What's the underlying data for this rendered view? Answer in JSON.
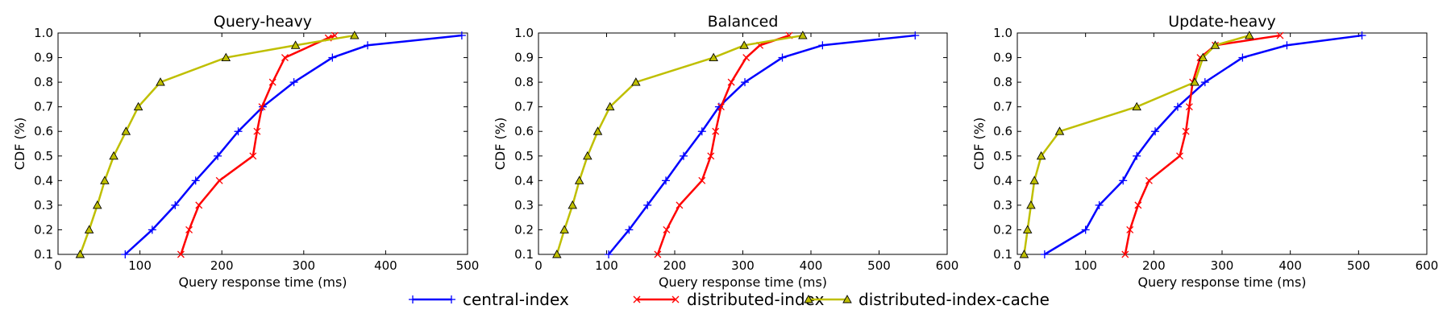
{
  "chart_data": [
    {
      "type": "line",
      "title": "Query-heavy",
      "xlabel": "Query response time (ms)",
      "ylabel": "CDF (%)",
      "xlim": [
        0,
        500
      ],
      "ylim": [
        0.1,
        1.0
      ],
      "xticks": [
        0,
        100,
        200,
        300,
        400,
        500
      ],
      "yticks": [
        0.1,
        0.2,
        0.3,
        0.4,
        0.5,
        0.6,
        0.7,
        0.8,
        0.9,
        1.0
      ],
      "grid": false,
      "series": [
        {
          "name": "central-index",
          "x": [
            82,
            115,
            143,
            168,
            195,
            220,
            250,
            288,
            335,
            378,
            493
          ],
          "y": [
            0.1,
            0.2,
            0.3,
            0.4,
            0.5,
            0.6,
            0.7,
            0.8,
            0.9,
            0.95,
            0.99
          ]
        },
        {
          "name": "distributed-index",
          "x": [
            150,
            160,
            172,
            197,
            238,
            243,
            249,
            262,
            277,
            330,
            338
          ],
          "y": [
            0.1,
            0.2,
            0.3,
            0.4,
            0.5,
            0.6,
            0.7,
            0.8,
            0.9,
            0.98,
            0.99
          ]
        },
        {
          "name": "distributed-index-cache",
          "x": [
            27,
            38,
            48,
            57,
            68,
            83,
            98,
            125,
            205,
            290,
            362
          ],
          "y": [
            0.1,
            0.2,
            0.3,
            0.4,
            0.5,
            0.6,
            0.7,
            0.8,
            0.9,
            0.95,
            0.99
          ]
        }
      ]
    },
    {
      "type": "line",
      "title": "Balanced",
      "xlabel": "Query response time (ms)",
      "ylabel": "CDF (%)",
      "xlim": [
        0,
        600
      ],
      "ylim": [
        0.1,
        1.0
      ],
      "xticks": [
        0,
        100,
        200,
        300,
        400,
        500,
        600
      ],
      "yticks": [
        0.1,
        0.2,
        0.3,
        0.4,
        0.5,
        0.6,
        0.7,
        0.8,
        0.9,
        1.0
      ],
      "grid": false,
      "series": [
        {
          "name": "central-index",
          "x": [
            103,
            133,
            160,
            187,
            213,
            240,
            265,
            303,
            358,
            417,
            553
          ],
          "y": [
            0.1,
            0.2,
            0.3,
            0.4,
            0.5,
            0.6,
            0.7,
            0.8,
            0.9,
            0.95,
            0.99
          ]
        },
        {
          "name": "distributed-index",
          "x": [
            175,
            188,
            207,
            240,
            253,
            260,
            268,
            283,
            305,
            325,
            368
          ],
          "y": [
            0.1,
            0.2,
            0.3,
            0.4,
            0.5,
            0.6,
            0.7,
            0.8,
            0.9,
            0.95,
            0.99
          ]
        },
        {
          "name": "distributed-index-cache",
          "x": [
            27,
            38,
            50,
            60,
            72,
            87,
            105,
            143,
            257,
            302,
            388
          ],
          "y": [
            0.1,
            0.2,
            0.3,
            0.4,
            0.5,
            0.6,
            0.7,
            0.8,
            0.9,
            0.95,
            0.99
          ]
        }
      ]
    },
    {
      "type": "line",
      "title": "Update-heavy",
      "xlabel": "Query response time (ms)",
      "ylabel": "CDF (%)",
      "xlim": [
        0,
        600
      ],
      "ylim": [
        0.1,
        1.0
      ],
      "xticks": [
        0,
        100,
        200,
        300,
        400,
        500,
        600
      ],
      "yticks": [
        0.1,
        0.2,
        0.3,
        0.4,
        0.5,
        0.6,
        0.7,
        0.8,
        0.9,
        1.0
      ],
      "grid": false,
      "series": [
        {
          "name": "central-index",
          "x": [
            40,
            100,
            120,
            155,
            175,
            202,
            235,
            275,
            330,
            395,
            505
          ],
          "y": [
            0.1,
            0.2,
            0.3,
            0.4,
            0.5,
            0.6,
            0.7,
            0.8,
            0.9,
            0.95,
            0.99
          ]
        },
        {
          "name": "distributed-index",
          "x": [
            158,
            165,
            177,
            193,
            238,
            247,
            252,
            257,
            268,
            290,
            385
          ],
          "y": [
            0.1,
            0.2,
            0.3,
            0.4,
            0.5,
            0.6,
            0.7,
            0.8,
            0.9,
            0.95,
            0.99
          ]
        },
        {
          "name": "distributed-index-cache",
          "x": [
            10,
            15,
            20,
            25,
            35,
            62,
            175,
            260,
            272,
            290,
            340
          ],
          "y": [
            0.1,
            0.2,
            0.3,
            0.4,
            0.5,
            0.6,
            0.7,
            0.8,
            0.9,
            0.95,
            0.99
          ]
        }
      ]
    }
  ],
  "legend": {
    "placement": "bottom-center",
    "entries": [
      {
        "label": "central-index",
        "color": "#0000ff",
        "marker": "plus"
      },
      {
        "label": "distributed-index",
        "color": "#ff0000",
        "marker": "x"
      },
      {
        "label": "distributed-index-cache",
        "color": "#bfbf00",
        "marker": "triangle"
      }
    ]
  },
  "colors": {
    "central-index": "#0000ff",
    "distributed-index": "#ff0000",
    "distributed-index-cache": "#bfbf00"
  }
}
